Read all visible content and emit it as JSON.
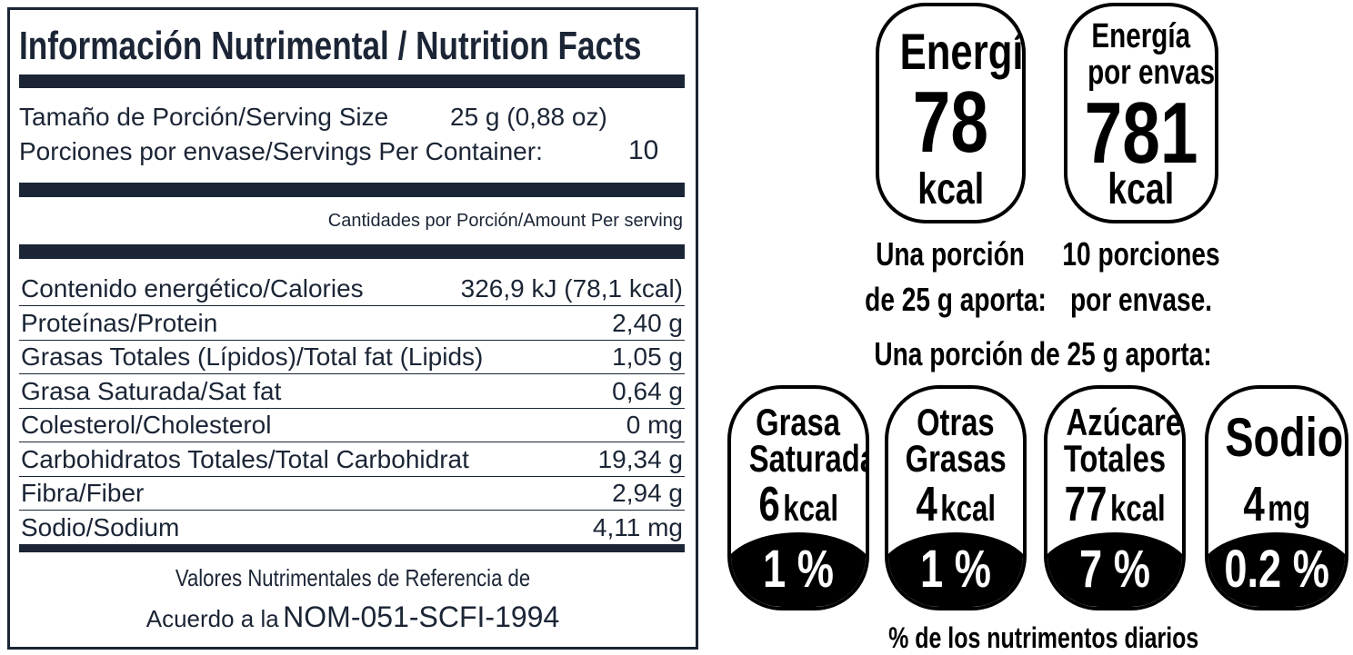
{
  "nutrition_facts": {
    "title": "Información Nutrimental / Nutrition Facts",
    "serving_size_label": "Tamaño de Porción/Serving Size",
    "serving_size": "25 g (0,88 oz)",
    "servings_label": "Porciones por envase/Servings Per Container:",
    "servings": "10",
    "amount_header": "Cantidades por Porción/Amount Per serving",
    "rows": [
      {
        "label": "Contenido energético/Calories",
        "value": "326,9 kJ (78,1 kcal)"
      },
      {
        "label": "Proteínas/Protein",
        "value": "2,40 g"
      },
      {
        "label": "Grasas Totales (Lípidos)/Total fat (Lipids)",
        "value": "1,05 g"
      },
      {
        "label": "Grasa Saturada/Sat fat",
        "value": "0,64 g"
      },
      {
        "label": "Colesterol/Cholesterol",
        "value": "0 mg"
      },
      {
        "label": "Carbohidratos Totales/Total Carbohidrat",
        "value": "19,34 g"
      },
      {
        "label": "Fibra/Fiber",
        "value": "2,94 g"
      },
      {
        "label": "Sodio/Sodium",
        "value": "4,11 mg"
      }
    ],
    "footer_line1": "Valores Nutrimentales de Referencia de",
    "footer_prefix": "Acuerdo a la",
    "footer_norm": "NOM-051-SCFI-1994"
  },
  "energy_badges": [
    {
      "title": [
        "Energía"
      ],
      "value": "78",
      "unit": "kcal",
      "caption": [
        "Una porción",
        "de 25 g aporta:"
      ]
    },
    {
      "title": [
        "Energía",
        "por envase"
      ],
      "value": "781",
      "unit": "kcal",
      "caption": [
        "10 porciones",
        "por envase."
      ]
    }
  ],
  "nutrient_header": "Una porción de 25 g aporta:",
  "nutrient_badges": [
    {
      "name": [
        "Grasa",
        "Saturada"
      ],
      "value": "6",
      "unit": "kcal",
      "percent": "1 %"
    },
    {
      "name": [
        "Otras",
        "Grasas"
      ],
      "value": "4",
      "unit": "kcal",
      "percent": "1 %"
    },
    {
      "name": [
        "Azúcares",
        "Totales"
      ],
      "value": "77",
      "unit": "kcal",
      "percent": "7 %"
    },
    {
      "name": [
        "Sodio"
      ],
      "value": "4",
      "unit": "mg",
      "percent": "0.2 %"
    }
  ],
  "nutrient_footer": "% de los nutrimentos diarios"
}
